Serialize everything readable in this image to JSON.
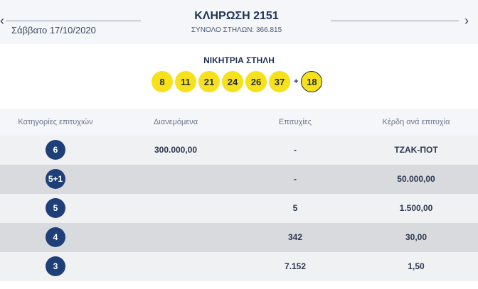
{
  "header": {
    "date": "Σάββατο 17/10/2020",
    "draw_title": "ΚΛΗΡΩΣΗ 2151",
    "total_columns": "ΣΥΝΟΛΟ ΣΤΗΛΩΝ: 366.815",
    "prev_icon": "chevron-left-icon",
    "next_icon": "chevron-right-icon"
  },
  "winning": {
    "label": "ΝΙΚΗΤΡΙΑ ΣΤΗΛΗ",
    "numbers": [
      "8",
      "11",
      "21",
      "24",
      "26",
      "37"
    ],
    "plus": "+",
    "joker": "18"
  },
  "table": {
    "headers": [
      "Κατηγορίες επιτυχιών",
      "Διανεμόμενα",
      "Επιτυχίες",
      "Κέρδη ανά επιτυχία"
    ],
    "rows": [
      {
        "category": "6",
        "distributed": "300.000,00",
        "winners": "-",
        "prize": "ΤΖΑΚ-ΠΟΤ"
      },
      {
        "category": "5+1",
        "distributed": "",
        "winners": "-",
        "prize": "50.000,00"
      },
      {
        "category": "5",
        "distributed": "",
        "winners": "5",
        "prize": "1.500,00"
      },
      {
        "category": "4",
        "distributed": "",
        "winners": "342",
        "prize": "30,00"
      },
      {
        "category": "3",
        "distributed": "",
        "winners": "7.152",
        "prize": "1,50"
      }
    ]
  },
  "colors": {
    "ball": "#f7e11a",
    "category_badge": "#1f3f78",
    "row_light": "#f0f1f3",
    "row_dark": "#d8dadd"
  }
}
